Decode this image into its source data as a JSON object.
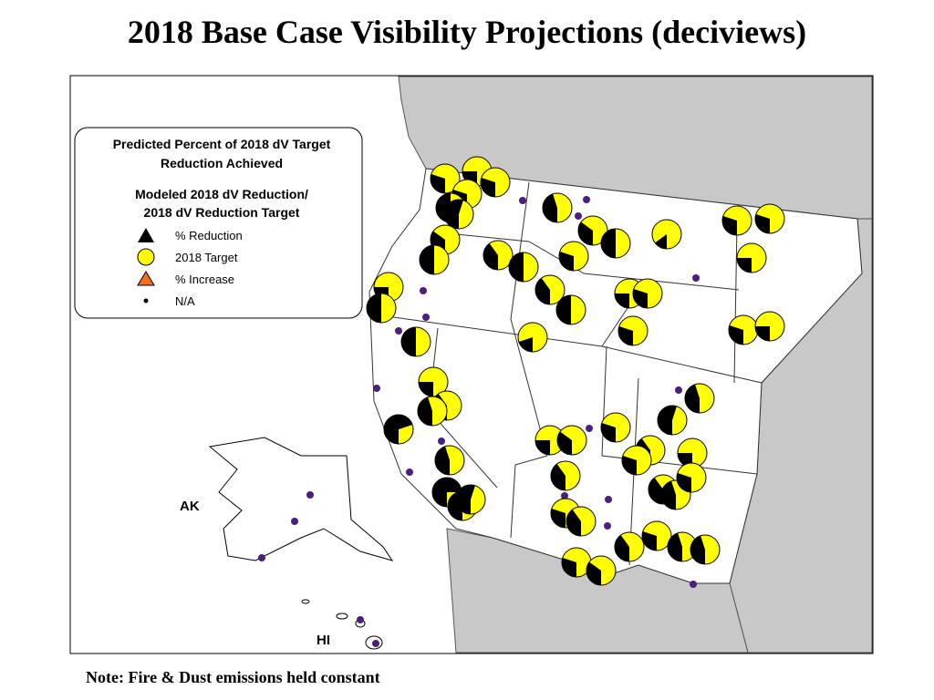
{
  "title": "2018 Base Case Visibility Projections (deciviews)",
  "legend": {
    "title_lines": [
      "Predicted Percent of 2018 dV Target",
      "Reduction Achieved"
    ],
    "subtitle_lines": [
      "Modeled 2018 dV Reduction/",
      "2018 dV Reduction Target"
    ],
    "items": [
      "% Reduction",
      "2018 Target",
      "% Increase",
      "N/A"
    ]
  },
  "labels": {
    "ak": "AK",
    "hi": "HI"
  },
  "pies": [
    30,
    25,
    30,
    30,
    50,
    55,
    35,
    50,
    25,
    50,
    50,
    40,
    50,
    45,
    35,
    50,
    15,
    30,
    30,
    25,
    30,
    40,
    50,
    25,
    30,
    30,
    20,
    30,
    25,
    25,
    40,
    45,
    70,
    45,
    75,
    65,
    55,
    25,
    35,
    30,
    55,
    45,
    40,
    30,
    25,
    40,
    40,
    45,
    30,
    30,
    40,
    30,
    35,
    40,
    30,
    45,
    45
  ],
  "note": "Note: Fire & Dust emissions held constant"
}
